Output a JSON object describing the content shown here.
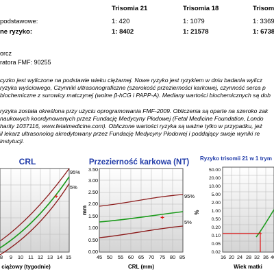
{
  "risk_table": {
    "headers": [
      "Trisomia 21",
      "Trisomia 18",
      "Trisom"
    ],
    "rows": [
      {
        "label": "podstawowe:",
        "values": [
          "1: 420",
          "1: 1079",
          "1: 3369"
        ]
      },
      {
        "label": "ne ryzyko:",
        "values": [
          "1: 8402",
          "1: 21578",
          "1: 6738"
        ]
      }
    ]
  },
  "operator": {
    "name": "orcz",
    "fmf_line": "ratora FMF: 90255"
  },
  "paragraphs": [
    "cyzko jest wyliczone na podstawie wieku ciężarnej. Nowe ryzyko jest ryzykiem w dniu badania wylicz",
    "ryzyka wyściowego, Czynniki ultrasonograficzne (szerokość przezierności karkowej, czynność serca p",
    "biochemiczne z surowicy matczynej (wolne β-hCG i PAPP-A). Mediany wartości biochemicznych są dob",
    "",
    "ryzyka została określona przy użyciu oprogramowania FMF-2009. Obliczenia są oparte na szeroko zak",
    "naukowych koordynowanych przez Fundację Medycyny Płodowej (Fetal Medicine Foundation, Londo",
    "harity 1037116, www.fetalmedicine.com). Obliczone wartości ryzyka są ważne tylko w przypadku, jeż",
    "il lekarz ultrasonolog akredytowany przez Fundację Medycyny Płodowej i poddający swoje wyniki re",
    "instytucji."
  ],
  "charts": {
    "crl": {
      "title": "CRL",
      "xlabel": "ciążowy (tygodnie)",
      "xticks": [
        "8",
        "9",
        "10",
        "11",
        "12",
        "13",
        "14",
        "15"
      ],
      "percentile_labels": [
        "95%",
        "5%"
      ]
    },
    "nt": {
      "title": "Przezierność karkowa (NT)",
      "xlabel": "CRL (mm)",
      "ylabel": "mm",
      "xticks": [
        "45",
        "50",
        "55",
        "60",
        "65",
        "70",
        "75",
        "80",
        "85"
      ],
      "yticks": [
        "0.00",
        "0.50",
        "1.00",
        "1.50",
        "2.00",
        "2.50",
        "3.00",
        "3.50"
      ],
      "percentile_labels": [
        "95%",
        "5%"
      ]
    },
    "t21": {
      "title": "Ryzyko trisomii 21 w 1 trym",
      "xlabel": "Wiek matki",
      "ylabel": "%",
      "xticks": [
        "16",
        "20",
        "24",
        "28",
        "32",
        "36",
        "40"
      ],
      "yticks": [
        "0.02",
        "0.05",
        "0.10",
        "0.20",
        "0.50",
        "1.00",
        "2.00",
        "5.00",
        "10.00",
        "20.00",
        "50.00"
      ]
    }
  },
  "chart_data": [
    {
      "type": "line",
      "title": "CRL",
      "xlabel": "ciążowy (tygodnie)",
      "x": [
        8,
        9,
        10,
        11,
        12,
        13,
        14
      ],
      "series": [
        {
          "name": "95%",
          "values": [
            null,
            null,
            null,
            null,
            null,
            null,
            null
          ]
        },
        {
          "name": "5%",
          "values": [
            null,
            null,
            null,
            null,
            null,
            null,
            null
          ]
        }
      ],
      "points": [
        {
          "x": 12.5,
          "label": "patient"
        }
      ],
      "colors": {
        "p95": "#8b1a1a",
        "median": "#1a9a1a",
        "p5": "#8b1a1a",
        "marker": "#e01010"
      }
    },
    {
      "type": "line",
      "title": "Przezierność karkowa (NT)",
      "xlabel": "CRL (mm)",
      "ylabel": "mm",
      "x": [
        45,
        55,
        65,
        75,
        85
      ],
      "series": [
        {
          "name": "95%",
          "values": [
            2.1,
            2.3,
            2.5,
            2.65,
            2.7
          ]
        },
        {
          "name": "",
          "values": [
            1.25,
            1.4,
            1.55,
            1.65,
            1.7
          ]
        },
        {
          "name": "5%",
          "values": [
            0.6,
            0.8,
            0.95,
            1.05,
            1.1
          ]
        }
      ],
      "points": [
        {
          "x": 76,
          "y": 1.7
        }
      ],
      "xlim": [
        45,
        85
      ],
      "ylim": [
        0,
        3.5
      ],
      "colors": {
        "p95": "#8b1a1a",
        "median": "#1a9a1a",
        "p5": "#8b1a1a",
        "marker": "#e01010"
      }
    },
    {
      "type": "line",
      "title": "Ryzyko trisomii 21 w 1 trym",
      "xlabel": "Wiek matki",
      "ylabel": "%",
      "x": [
        16,
        20,
        24,
        28,
        32,
        36,
        40
      ],
      "series": [
        {
          "name": "",
          "values": [
            null,
            null,
            null,
            null,
            null,
            0.2,
            1.0
          ]
        }
      ],
      "points": [
        {
          "x": 35,
          "y": 0.24
        }
      ],
      "xlim": [
        16,
        40
      ],
      "ylim": [
        0.02,
        50
      ],
      "scale": "log",
      "colors": {
        "curve": "#1a9a1a",
        "guide": "#e01010",
        "marker": "#e01010"
      }
    }
  ]
}
